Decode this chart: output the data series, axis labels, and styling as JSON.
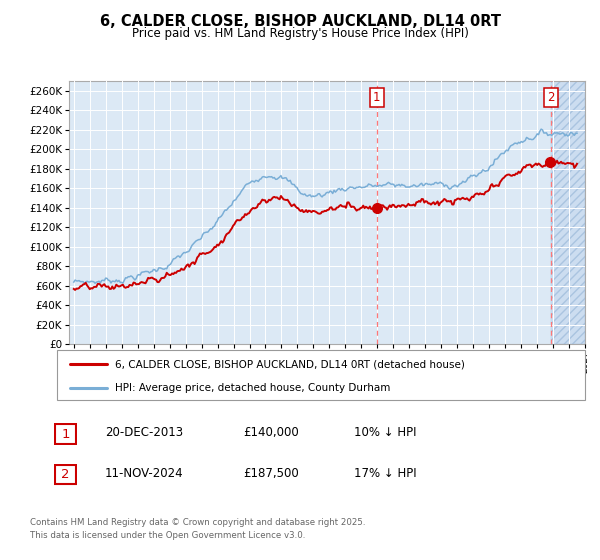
{
  "title": "6, CALDER CLOSE, BISHOP AUCKLAND, DL14 0RT",
  "subtitle": "Price paid vs. HM Land Registry's House Price Index (HPI)",
  "background_color": "#dce9f5",
  "grid_color": "#ffffff",
  "red_line_color": "#cc0000",
  "blue_line_color": "#7aaed6",
  "x_start_year": 1995,
  "x_end_year": 2027,
  "ylim": [
    0,
    270000
  ],
  "yticks": [
    0,
    20000,
    40000,
    60000,
    80000,
    100000,
    120000,
    140000,
    160000,
    180000,
    200000,
    220000,
    240000,
    260000
  ],
  "purchase1_year": 2013.97,
  "purchase1_price": 140000,
  "purchase2_year": 2024.87,
  "purchase2_price": 187500,
  "legend_line1": "6, CALDER CLOSE, BISHOP AUCKLAND, DL14 0RT (detached house)",
  "legend_line2": "HPI: Average price, detached house, County Durham",
  "annotation1_date": "20-DEC-2013",
  "annotation1_price": "£140,000",
  "annotation1_hpi": "10% ↓ HPI",
  "annotation2_date": "11-NOV-2024",
  "annotation2_price": "£187,500",
  "annotation2_hpi": "17% ↓ HPI",
  "footer": "Contains HM Land Registry data © Crown copyright and database right 2025.\nThis data is licensed under the Open Government Licence v3.0."
}
